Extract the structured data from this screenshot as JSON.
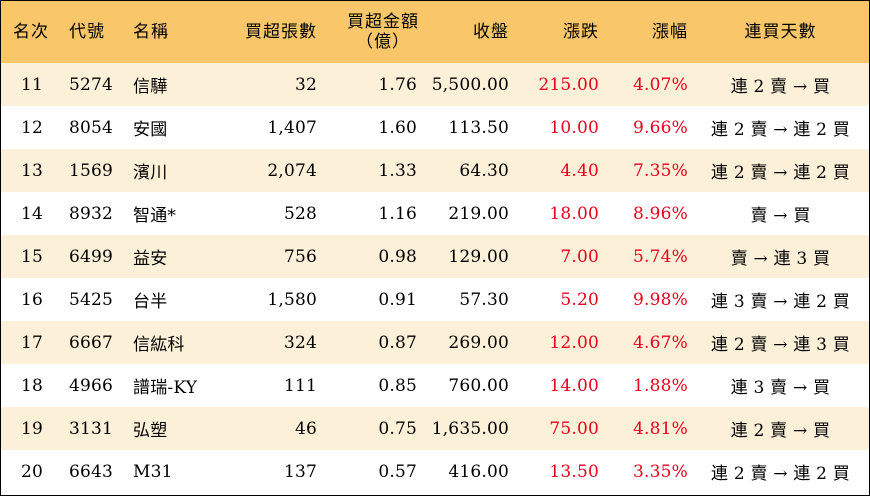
{
  "table": {
    "headers": {
      "rank": "名次",
      "code": "代號",
      "name": "名稱",
      "volume": "買超張數",
      "amount_line1": "買超金額",
      "amount_line2": "（億）",
      "close": "收盤",
      "change": "漲跌",
      "pct": "漲幅",
      "streak": "連買天數"
    },
    "rows": [
      {
        "rank": "11",
        "code": "5274",
        "name": "信驊",
        "volume": "32",
        "amount": "1.76",
        "close": "5,500.00",
        "change": "215.00",
        "pct": "4.07%",
        "streak": "連 2 賣 → 買"
      },
      {
        "rank": "12",
        "code": "8054",
        "name": "安國",
        "volume": "1,407",
        "amount": "1.60",
        "close": "113.50",
        "change": "10.00",
        "pct": "9.66%",
        "streak": "連 2 賣 → 連 2 買"
      },
      {
        "rank": "13",
        "code": "1569",
        "name": "濱川",
        "volume": "2,074",
        "amount": "1.33",
        "close": "64.30",
        "change": "4.40",
        "pct": "7.35%",
        "streak": "連 2 賣 → 連 2 買"
      },
      {
        "rank": "14",
        "code": "8932",
        "name": "智通*",
        "volume": "528",
        "amount": "1.16",
        "close": "219.00",
        "change": "18.00",
        "pct": "8.96%",
        "streak": "賣 → 買"
      },
      {
        "rank": "15",
        "code": "6499",
        "name": "益安",
        "volume": "756",
        "amount": "0.98",
        "close": "129.00",
        "change": "7.00",
        "pct": "5.74%",
        "streak": "賣 → 連 3 買"
      },
      {
        "rank": "16",
        "code": "5425",
        "name": "台半",
        "volume": "1,580",
        "amount": "0.91",
        "close": "57.30",
        "change": "5.20",
        "pct": "9.98%",
        "streak": "連 3 賣 → 連 2 買"
      },
      {
        "rank": "17",
        "code": "6667",
        "name": "信紘科",
        "volume": "324",
        "amount": "0.87",
        "close": "269.00",
        "change": "12.00",
        "pct": "4.67%",
        "streak": "連 2 賣 → 連 3 買"
      },
      {
        "rank": "18",
        "code": "4966",
        "name": "譜瑞-KY",
        "volume": "111",
        "amount": "0.85",
        "close": "760.00",
        "change": "14.00",
        "pct": "1.88%",
        "streak": "連 3 賣 → 買"
      },
      {
        "rank": "19",
        "code": "3131",
        "name": "弘塑",
        "volume": "46",
        "amount": "0.75",
        "close": "1,635.00",
        "change": "75.00",
        "pct": "4.81%",
        "streak": "連 2 賣 → 買"
      },
      {
        "rank": "20",
        "code": "6643",
        "name": "M31",
        "volume": "137",
        "amount": "0.57",
        "close": "416.00",
        "change": "13.50",
        "pct": "3.35%",
        "streak": "連 2 賣 → 連 2 買"
      }
    ]
  },
  "colors": {
    "header_bg": "#f9c66a",
    "stripe_bg": "#fdf0d8",
    "up_red": "#e8001c"
  }
}
